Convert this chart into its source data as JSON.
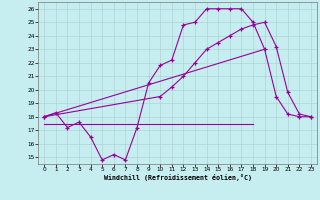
{
  "xlabel": "Windchill (Refroidissement éolien,°C)",
  "bg_color": "#c6eef0",
  "line_color": "#990099",
  "grid_color": "#aacccc",
  "ylim": [
    14.5,
    26.5
  ],
  "xlim": [
    -0.5,
    23.5
  ],
  "yticks": [
    15,
    16,
    17,
    18,
    19,
    20,
    21,
    22,
    23,
    24,
    25,
    26
  ],
  "xticks": [
    0,
    1,
    2,
    3,
    4,
    5,
    6,
    7,
    8,
    9,
    10,
    11,
    12,
    13,
    14,
    15,
    16,
    17,
    18,
    19,
    20,
    21,
    22,
    23
  ],
  "series1_x": [
    0,
    1,
    2,
    3,
    4,
    5,
    6,
    7,
    8,
    9,
    10,
    11,
    12,
    13,
    14,
    15,
    16,
    17,
    18,
    19,
    20,
    21,
    22,
    23
  ],
  "series1_y": [
    18.0,
    18.3,
    17.2,
    17.6,
    16.5,
    14.8,
    15.2,
    14.8,
    17.2,
    20.5,
    21.8,
    22.2,
    24.8,
    25.0,
    26.0,
    26.0,
    26.0,
    26.0,
    25.0,
    23.0,
    19.5,
    18.2,
    18.0,
    18.0
  ],
  "series2_x": [
    0,
    18
  ],
  "series2_y": [
    17.5,
    17.5
  ],
  "series3_x": [
    0,
    10,
    11,
    12,
    13,
    14,
    15,
    16,
    17,
    18,
    19,
    20,
    21,
    22,
    23
  ],
  "series3_y": [
    18.0,
    19.5,
    20.2,
    21.0,
    22.0,
    23.0,
    23.5,
    24.0,
    24.5,
    24.8,
    25.0,
    23.2,
    19.8,
    18.2,
    18.0
  ]
}
